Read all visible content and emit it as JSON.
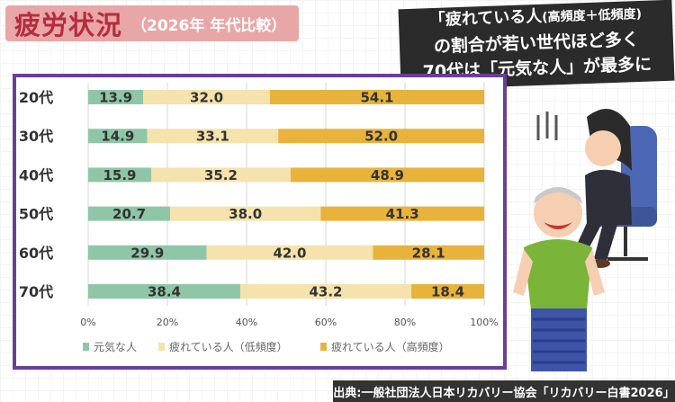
{
  "title": {
    "main": "疲労状況",
    "sub": "（2026年 年代比較）"
  },
  "headline": {
    "line1_a": "「疲れている人",
    "line1_b": "(高頻度＋低頻度)",
    "line2": "の割合が若い世代ほど多く",
    "line3": "70代は「元気な人」が最多に"
  },
  "source": "出典:一般社団法人日本リカバリー協会「リカバリー白書2026」",
  "illustration": {
    "people": [
      "tired-woman-illustration",
      "smiling-elderly-man-illustration"
    ]
  },
  "colors": {
    "frame": "#6a3f95",
    "title_bg": "#e9a6a6",
    "title_text": "#b32d3f"
  },
  "chart_data": {
    "type": "bar",
    "orientation": "horizontal-stacked-100",
    "categories": [
      "20代",
      "30代",
      "40代",
      "50代",
      "60代",
      "70代"
    ],
    "series": [
      {
        "name": "元気な人",
        "color": "#8fc6a7",
        "values": [
          13.9,
          14.9,
          15.9,
          20.7,
          29.9,
          38.4
        ]
      },
      {
        "name": "疲れている人（低頻度）",
        "color": "#f5e2ac",
        "values": [
          32.0,
          33.1,
          35.2,
          38.0,
          42.0,
          43.2
        ]
      },
      {
        "name": "疲れている人（高頻度）",
        "color": "#e8b33b",
        "values": [
          54.1,
          52.0,
          48.9,
          41.3,
          28.1,
          18.4
        ]
      }
    ],
    "xlim": [
      0,
      100
    ],
    "xticks": [
      "0%",
      "20%",
      "40%",
      "60%",
      "80%",
      "100%"
    ],
    "grid": true,
    "legend": "bottom"
  }
}
